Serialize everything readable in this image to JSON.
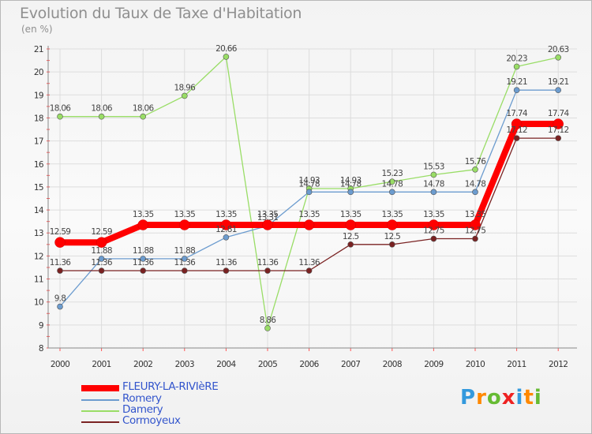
{
  "header": {
    "title": "Evolution du Taux de Taxe d'Habitation",
    "subtitle": "(en %)"
  },
  "chart_data": {
    "type": "line",
    "title": "Evolution du Taux de Taxe d'Habitation",
    "ylabel": "(en %)",
    "x": [
      "2000",
      "2001",
      "2002",
      "2003",
      "2004",
      "2005",
      "2006",
      "2007",
      "2008",
      "2009",
      "2010",
      "2011",
      "2012"
    ],
    "ylim": [
      8,
      21
    ],
    "yticks": [
      "8",
      "9",
      "10",
      "11",
      "12",
      "13",
      "14",
      "15",
      "16",
      "17",
      "18",
      "19",
      "20",
      "21"
    ],
    "grid": true,
    "legend_position": "bottom-left",
    "series": [
      {
        "name": "FLEURY-LA-RIVIèRE",
        "color": "#ff0000",
        "values": [
          12.59,
          12.59,
          13.35,
          13.35,
          13.35,
          13.35,
          13.35,
          13.35,
          13.35,
          13.35,
          13.35,
          17.74,
          17.74
        ],
        "labels": [
          "12.59",
          "12.59",
          "13.35",
          "13.35",
          "13.35",
          "13.35",
          "13.35",
          "13.35",
          "13.35",
          "13.35",
          "13.35",
          "17.74",
          "17.74"
        ]
      },
      {
        "name": "Romery",
        "color": "#6c9ccf",
        "values": [
          9.8,
          11.88,
          11.88,
          11.88,
          12.81,
          13.31,
          14.78,
          14.78,
          14.78,
          14.78,
          14.78,
          19.21,
          19.21
        ],
        "labels": [
          "9.8",
          "11.88",
          "11.88",
          "11.88",
          "12.81",
          "13.31",
          "14.78",
          "14.78",
          "14.78",
          "14.78",
          "14.78",
          "19.21",
          "19.21"
        ]
      },
      {
        "name": "Damery",
        "color": "#99dd66",
        "values": [
          18.06,
          18.06,
          18.06,
          18.96,
          20.66,
          8.86,
          14.93,
          14.93,
          15.23,
          15.53,
          15.76,
          20.23,
          20.63
        ],
        "labels": [
          "18.06",
          "18.06",
          "18.06",
          "18.96",
          "20.66",
          "8.86",
          "14.93",
          "14.93",
          "15.23",
          "15.53",
          "15.76",
          "20.23",
          "20.63"
        ]
      },
      {
        "name": "Cormoyeux",
        "color": "#7a2222",
        "values": [
          11.36,
          11.36,
          11.36,
          11.36,
          11.36,
          11.36,
          11.36,
          12.5,
          12.5,
          12.75,
          12.75,
          17.12,
          17.12
        ],
        "labels": [
          "11.36",
          "11.36",
          "11.36",
          "11.36",
          "11.36",
          "11.36",
          "11.36",
          "12.5",
          "12.5",
          "12.75",
          "12.75",
          "17.12",
          "17.12"
        ]
      }
    ]
  },
  "legend": {
    "items": [
      {
        "label": "FLEURY-LA-RIVIèRE",
        "color": "#ff0000"
      },
      {
        "label": "Romery",
        "color": "#6c9ccf"
      },
      {
        "label": "Damery",
        "color": "#99dd66"
      },
      {
        "label": "Cormoyeux",
        "color": "#7a2222"
      }
    ]
  },
  "logo": {
    "text": "Proxiti",
    "letters": [
      {
        "ch": "P",
        "color": "#3399dd"
      },
      {
        "ch": "r",
        "color": "#ff8800"
      },
      {
        "ch": "o",
        "color": "#66bb33"
      },
      {
        "ch": "x",
        "color": "#ee2222"
      },
      {
        "ch": "i",
        "color": "#3399dd"
      },
      {
        "ch": "t",
        "color": "#ff8800"
      },
      {
        "ch": "i",
        "color": "#66bb33"
      }
    ]
  }
}
